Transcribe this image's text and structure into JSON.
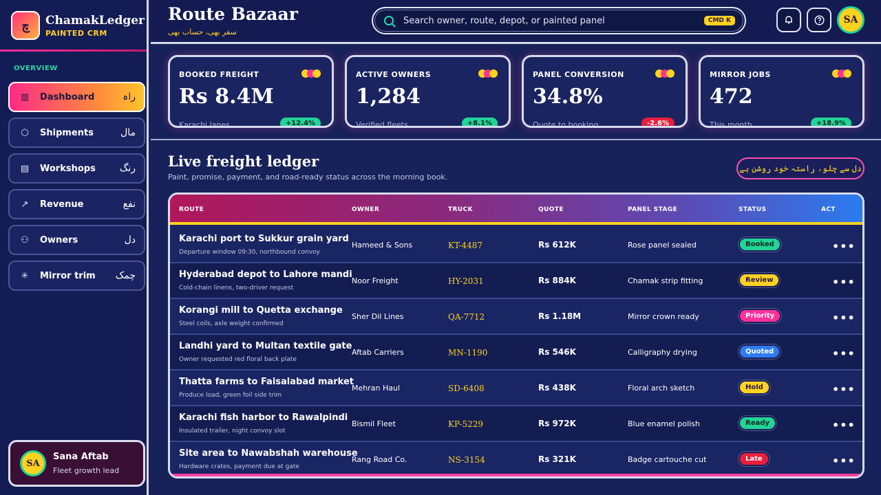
{
  "brand": {
    "logo_glyph": "چ",
    "name": "ChamakLedger",
    "sub": "PAINTED CRM"
  },
  "sidebar": {
    "section_label": "OVERVIEW",
    "items": [
      {
        "label": "Dashboard",
        "urdu": "راہ",
        "icon": "dashboard-icon",
        "glyph": "▥",
        "active": true
      },
      {
        "label": "Shipments",
        "urdu": "مال",
        "icon": "box-icon",
        "glyph": "⬡",
        "active": false
      },
      {
        "label": "Workshops",
        "urdu": "رنگ",
        "icon": "building-icon",
        "glyph": "▤",
        "active": false
      },
      {
        "label": "Revenue",
        "urdu": "نفع",
        "icon": "trend-up-icon",
        "glyph": "↗",
        "active": false
      },
      {
        "label": "Owners",
        "urdu": "دل",
        "icon": "person-icon",
        "glyph": "⚇",
        "active": false
      },
      {
        "label": "Mirror trim",
        "urdu": "چمک",
        "icon": "sparkle-icon",
        "glyph": "✳",
        "active": false
      }
    ],
    "profile": {
      "initials": "SA",
      "name": "Sana Aftab",
      "role": "Fleet growth lead"
    }
  },
  "header": {
    "title": "Route Bazaar",
    "subtitle": "سفر بھی، حساب بھی",
    "search_placeholder": "Search owner, route, depot, or painted panel",
    "search_shortcut": "CMD K",
    "avatar_initials": "SA"
  },
  "kpis": [
    {
      "label": "BOOKED FREIGHT",
      "value": "Rs 8.4M",
      "foot": "Karachi lanes",
      "delta": "+12.4%",
      "trend": "up"
    },
    {
      "label": "ACTIVE OWNERS",
      "value": "1,284",
      "foot": "Verified fleets",
      "delta": "+8.1%",
      "trend": "up"
    },
    {
      "label": "PANEL CONVERSION",
      "value": "34.8%",
      "foot": "Quote to booking",
      "delta": "-2.6%",
      "trend": "down"
    },
    {
      "label": "MIRROR JOBS",
      "value": "472",
      "foot": "This month",
      "delta": "+18.9%",
      "trend": "up"
    }
  ],
  "ledger": {
    "title": "Live freight ledger",
    "subtitle": "Paint, promise, payment, and road-ready status across the morning book.",
    "motto": "دل سے چلو، راستہ خود روشن ہے",
    "columns": [
      "ROUTE",
      "OWNER",
      "TRUCK",
      "QUOTE",
      "PANEL STAGE",
      "STATUS",
      "ACT"
    ],
    "rows": [
      {
        "route": "Karachi port to Sukkur grain yard",
        "note": "Departure window 09:30, northbound convoy",
        "owner": "Hameed & Sons",
        "truck": "KT-4487",
        "quote": "Rs 612K",
        "stage": "Rose panel sealed",
        "status": "Booked",
        "status_bg": "#22d497",
        "status_fg": "#0f2a22"
      },
      {
        "route": "Hyderabad depot to Lahore mandi",
        "note": "Cold-chain linens, two-driver request",
        "owner": "Noor Freight",
        "truck": "HY-2031",
        "quote": "Rs 884K",
        "stage": "Chamak strip fitting",
        "status": "Review",
        "status_bg": "#ffd21f",
        "status_fg": "#2a1640"
      },
      {
        "route": "Korangi mill to Quetta exchange",
        "note": "Steel coils, axle weight confirmed",
        "owner": "Sher Dil Lines",
        "truck": "QA-7712",
        "quote": "Rs 1.18M",
        "stage": "Mirror crown ready",
        "status": "Priority",
        "status_bg": "#ff2f9a",
        "status_fg": "#ffffff"
      },
      {
        "route": "Landhi yard to Multan textile gate",
        "note": "Owner requested red floral back plate",
        "owner": "Aftab Carriers",
        "truck": "MN-1190",
        "quote": "Rs 546K",
        "stage": "Calligraphy drying",
        "status": "Quoted",
        "status_bg": "#2d7cf0",
        "status_fg": "#ffffff"
      },
      {
        "route": "Thatta farms to Faisalabad market",
        "note": "Produce load, green foil side trim",
        "owner": "Mehran Haul",
        "truck": "SD-6408",
        "quote": "Rs 438K",
        "stage": "Floral arch sketch",
        "status": "Hold",
        "status_bg": "#ffd21f",
        "status_fg": "#2a1640"
      },
      {
        "route": "Karachi fish harbor to Rawalpindi",
        "note": "Insulated trailer, night convoy slot",
        "owner": "Bismil Fleet",
        "truck": "KP-5229",
        "quote": "Rs 972K",
        "stage": "Blue enamel polish",
        "status": "Ready",
        "status_bg": "#22d497",
        "status_fg": "#0f2a22"
      },
      {
        "route": "Site area to Nawabshah warehouse",
        "note": "Hardware crates, payment due at gate",
        "owner": "Rang Road Co.",
        "truck": "NS-3154",
        "quote": "Rs 321K",
        "stage": "Badge cartouche cut",
        "status": "Late",
        "status_bg": "#e81e3c",
        "status_fg": "#ffffff"
      }
    ],
    "action_glyph": "•••"
  },
  "colors": {
    "accent_pink": "#ff2f9a",
    "accent_yellow": "#ffd21f",
    "accent_green": "#22d497",
    "accent_red": "#e81e3c"
  }
}
